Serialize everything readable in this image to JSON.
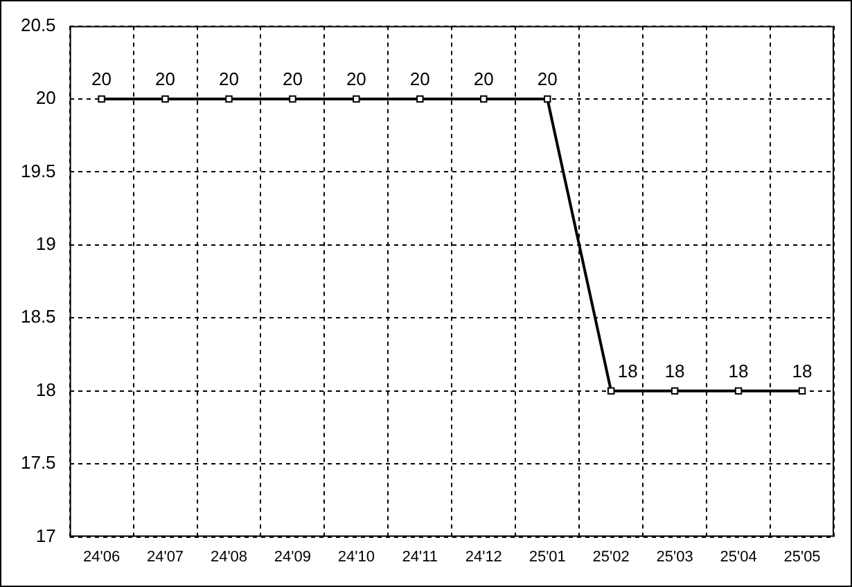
{
  "chart_data": {
    "type": "line",
    "categories": [
      "24'06",
      "24'07",
      "24'08",
      "24'09",
      "24'10",
      "24'11",
      "24'12",
      "25'01",
      "25'02",
      "25'03",
      "25'04",
      "25'05"
    ],
    "series": [
      {
        "color": "#000000",
        "values": [
          20,
          20,
          20,
          20,
          20,
          20,
          20,
          20,
          18,
          18,
          18,
          18
        ]
      }
    ],
    "ylim": [
      17,
      20.5
    ],
    "yticks": [
      17,
      17.5,
      18,
      18.5,
      19,
      19.5,
      20,
      20.5
    ],
    "grid": true,
    "marker": "square",
    "line_style": "solid",
    "data_labels": true
  }
}
